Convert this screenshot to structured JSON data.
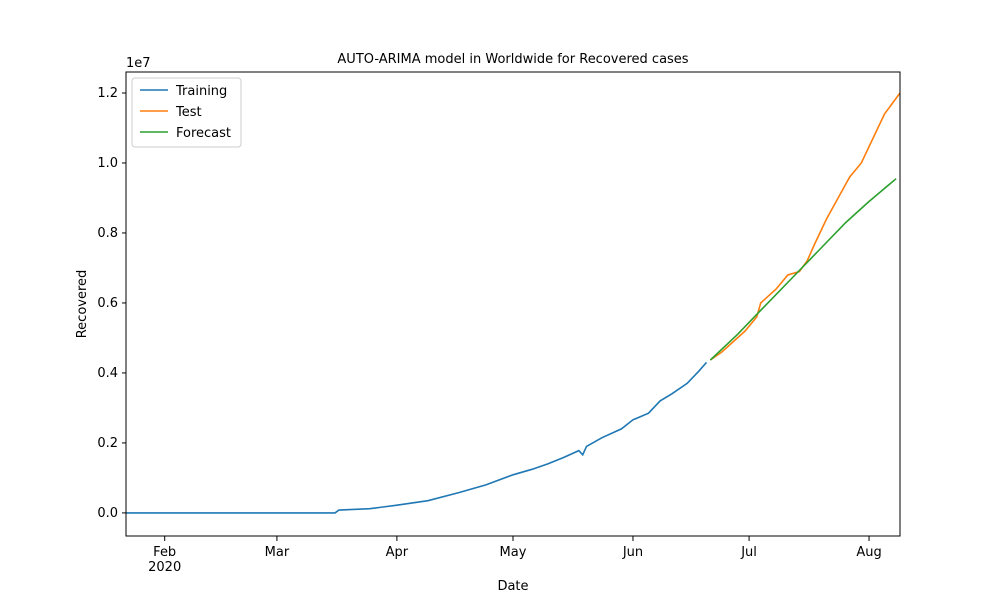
{
  "chart_data": {
    "type": "line",
    "title": "AUTO-ARIMA model in Worldwide for Recovered cases",
    "xlabel": "Date",
    "ylabel": "Recovered",
    "y_offset_label": "1e7",
    "x_year_label": "2020",
    "xlim": [
      22,
      222
    ],
    "xticks": [
      {
        "value": 32,
        "label": "Feb"
      },
      {
        "value": 61,
        "label": "Mar"
      },
      {
        "value": 92,
        "label": "Apr"
      },
      {
        "value": 122,
        "label": "May"
      },
      {
        "value": 153,
        "label": "Jun"
      },
      {
        "value": 183,
        "label": "Jul"
      },
      {
        "value": 214,
        "label": "Aug"
      }
    ],
    "ylim": [
      -0.066,
      1.26
    ],
    "yticks": [
      {
        "value": 0,
        "label": "0.0"
      },
      0.2,
      0.4,
      0.6,
      0.8,
      {
        "value": 1,
        "label": "1.0"
      },
      1.2
    ],
    "legend": "upper left",
    "series": [
      {
        "name": "Training",
        "color": "#1f77b4",
        "x": [
          22,
          76,
          77,
          85,
          92,
          100,
          108,
          115,
          122,
          127,
          131,
          135,
          139,
          140,
          141,
          145,
          150,
          153,
          157,
          160,
          163,
          167,
          170,
          172
        ],
        "values": [
          0,
          0,
          0.008,
          0.012,
          0.022,
          0.035,
          0.058,
          0.08,
          0.109,
          0.125,
          0.14,
          0.158,
          0.178,
          0.166,
          0.19,
          0.215,
          0.24,
          0.266,
          0.285,
          0.32,
          0.34,
          0.37,
          0.405,
          0.43
        ]
      },
      {
        "name": "Test",
        "color": "#ff7f0e",
        "x": [
          173,
          176,
          179,
          182,
          185,
          186,
          190,
          193,
          196,
          198,
          200,
          203,
          206,
          209,
          212,
          215,
          218,
          222
        ],
        "values": [
          0.437,
          0.46,
          0.49,
          0.52,
          0.56,
          0.6,
          0.64,
          0.68,
          0.69,
          0.72,
          0.77,
          0.84,
          0.9,
          0.96,
          1.0,
          1.07,
          1.14,
          1.2
        ]
      },
      {
        "name": "Forecast",
        "color": "#2ca02c",
        "x": [
          173,
          180,
          187,
          194,
          201,
          208,
          214,
          221
        ],
        "values": [
          0.437,
          0.51,
          0.59,
          0.67,
          0.75,
          0.83,
          0.89,
          0.955
        ]
      }
    ]
  }
}
